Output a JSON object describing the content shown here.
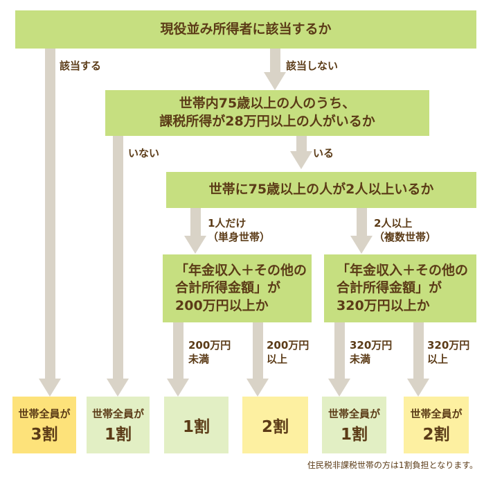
{
  "colors": {
    "question_box": "#c6df80",
    "arrow": "#d9d3c7",
    "text": "#5b3b17",
    "result_yellow_strong": "#fde27a",
    "result_yellow": "#fdf0a1",
    "result_green": "#e2efc4"
  },
  "questions": {
    "q1": "現役並み所得者に該当するか",
    "q2": "世帯内75歳以上の人のうち、\n課税所得が28万円以上の人がいるか",
    "q3": "世帯に75歳以上の人が2人以上いるか",
    "q4": "「年金収入＋その他の\n合計所得金額」が\n200万円以上か",
    "q5": "「年金収入＋その他の\n合計所得金額」が\n320万円以上か"
  },
  "branches": {
    "q1_yes": "該当する",
    "q1_no": "該当しない",
    "q2_no": "いない",
    "q2_yes": "いる",
    "q3_one": "1人だけ\n（単身世帯）",
    "q3_two": "2人以上\n（複数世帯）",
    "q4_below": "200万円\n未満",
    "q4_above": "200万円\n以上",
    "q5_below": "320万円\n未満",
    "q5_above": "320万円\n以上"
  },
  "results": [
    {
      "sub": "世帯全員が",
      "main": "3割"
    },
    {
      "sub": "世帯全員が",
      "main": "1割"
    },
    {
      "sub": "",
      "main": "1割"
    },
    {
      "sub": "",
      "main": "2割"
    },
    {
      "sub": "世帯全員が",
      "main": "1割"
    },
    {
      "sub": "世帯全員が",
      "main": "2割"
    }
  ],
  "footnote": "住民税非課税世帯の方は1割負担となります。"
}
